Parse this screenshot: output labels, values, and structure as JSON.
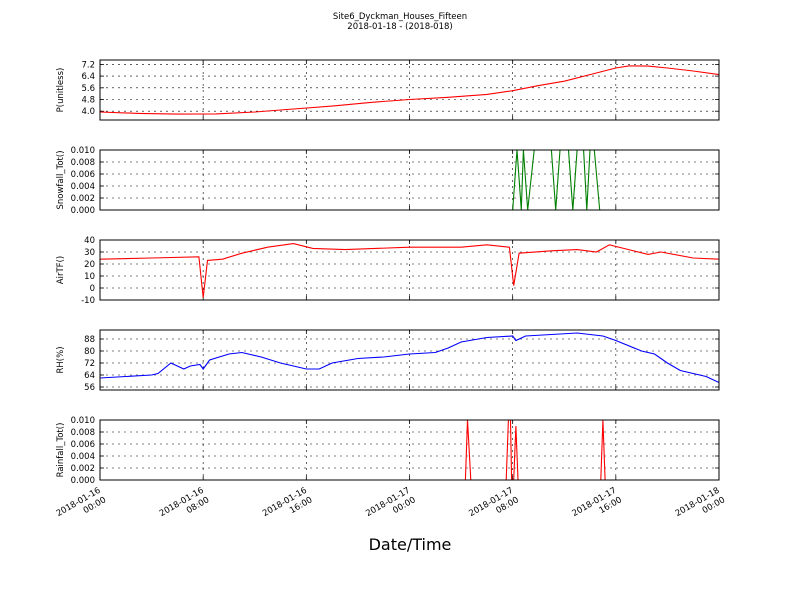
{
  "chart_data": {
    "type": "line",
    "title": "Site6_Dyckman_Houses_Fifteen",
    "subtitle": "2018-01-18 - (2018-018)",
    "xlabel": "Date/Time",
    "x_range": [
      "2018-01-16 00:00",
      "2018-01-18 00:00"
    ],
    "x_ticks": [
      {
        "x": "2018-01-16 00:00",
        "line1": "2018-01-16",
        "line2": "00:00"
      },
      {
        "x": "2018-01-16 08:00",
        "line1": "2018-01-16",
        "line2": "08:00"
      },
      {
        "x": "2018-01-16 16:00",
        "line1": "2018-01-16",
        "line2": "16:00"
      },
      {
        "x": "2018-01-17 00:00",
        "line1": "2018-01-17",
        "line2": "00:00"
      },
      {
        "x": "2018-01-17 08:00",
        "line1": "2018-01-17",
        "line2": "08:00"
      },
      {
        "x": "2018-01-17 16:00",
        "line1": "2018-01-17",
        "line2": "16:00"
      },
      {
        "x": "2018-01-18 00:00",
        "line1": "2018-01-18",
        "line2": "00:00"
      }
    ],
    "grid": true,
    "panels": [
      {
        "ylabel": "P(unitless)",
        "ylim": [
          3.4,
          7.5
        ],
        "yticks": [
          4.0,
          4.8,
          5.6,
          6.4,
          7.2
        ],
        "tick_decimals": 1,
        "color": "#ff0000",
        "points": [
          [
            "2018-01-16 00:00",
            3.95
          ],
          [
            "2018-01-16 03:00",
            3.85
          ],
          [
            "2018-01-16 06:00",
            3.8
          ],
          [
            "2018-01-16 09:00",
            3.82
          ],
          [
            "2018-01-16 12:00",
            3.95
          ],
          [
            "2018-01-16 15:00",
            4.15
          ],
          [
            "2018-01-16 18:00",
            4.35
          ],
          [
            "2018-01-16 21:00",
            4.6
          ],
          [
            "2018-01-17 00:00",
            4.8
          ],
          [
            "2018-01-17 03:00",
            4.95
          ],
          [
            "2018-01-17 06:00",
            5.15
          ],
          [
            "2018-01-17 08:00",
            5.4
          ],
          [
            "2018-01-17 10:00",
            5.75
          ],
          [
            "2018-01-17 12:00",
            6.05
          ],
          [
            "2018-01-17 14:00",
            6.5
          ],
          [
            "2018-01-17 16:00",
            6.95
          ],
          [
            "2018-01-17 17:00",
            7.1
          ],
          [
            "2018-01-17 18:30",
            7.08
          ],
          [
            "2018-01-17 20:00",
            6.95
          ],
          [
            "2018-01-17 22:00",
            6.75
          ],
          [
            "2018-01-18 00:00",
            6.5
          ]
        ]
      },
      {
        "ylabel": "Snowfall_Tot()",
        "ylim": [
          0.0,
          0.01
        ],
        "yticks": [
          0.0,
          0.002,
          0.004,
          0.006,
          0.008,
          0.01
        ],
        "tick_decimals": 3,
        "color": "#007f00",
        "points": [
          [
            "2018-01-16 00:00",
            0
          ],
          [
            "2018-01-17 08:00",
            0
          ],
          [
            "2018-01-17 08:20",
            0.01
          ],
          [
            "2018-01-17 08:40",
            0
          ],
          [
            "2018-01-17 08:50",
            0.01
          ],
          [
            "2018-01-17 09:10",
            0
          ],
          [
            "2018-01-17 09:40",
            0.01
          ],
          [
            "2018-01-17 11:00",
            0.01
          ],
          [
            "2018-01-17 11:20",
            0
          ],
          [
            "2018-01-17 11:40",
            0.01
          ],
          [
            "2018-01-17 12:20",
            0.01
          ],
          [
            "2018-01-17 12:40",
            0
          ],
          [
            "2018-01-17 13:00",
            0.01
          ],
          [
            "2018-01-17 13:30",
            0.01
          ],
          [
            "2018-01-17 13:45",
            0
          ],
          [
            "2018-01-17 14:00",
            0.01
          ],
          [
            "2018-01-17 14:20",
            0.01
          ],
          [
            "2018-01-17 14:45",
            0
          ],
          [
            "2018-01-18 00:00",
            0
          ]
        ]
      },
      {
        "ylabel": "AirTF()",
        "ylim": [
          -10,
          40
        ],
        "yticks": [
          -10,
          0,
          10,
          20,
          30,
          40
        ],
        "tick_decimals": 0,
        "color": "#ff0000",
        "points": [
          [
            "2018-01-16 00:00",
            24
          ],
          [
            "2018-01-16 04:00",
            25
          ],
          [
            "2018-01-16 07:40",
            26
          ],
          [
            "2018-01-16 08:00",
            -8
          ],
          [
            "2018-01-16 08:20",
            23
          ],
          [
            "2018-01-16 09:30",
            24
          ],
          [
            "2018-01-16 11:00",
            29
          ],
          [
            "2018-01-16 13:00",
            34
          ],
          [
            "2018-01-16 15:00",
            37
          ],
          [
            "2018-01-16 16:30",
            33
          ],
          [
            "2018-01-16 19:00",
            32
          ],
          [
            "2018-01-17 00:00",
            34
          ],
          [
            "2018-01-17 04:00",
            34
          ],
          [
            "2018-01-17 06:00",
            36
          ],
          [
            "2018-01-17 07:45",
            34
          ],
          [
            "2018-01-17 08:05",
            2
          ],
          [
            "2018-01-17 08:30",
            29
          ],
          [
            "2018-01-17 11:00",
            31
          ],
          [
            "2018-01-17 13:00",
            32
          ],
          [
            "2018-01-17 14:30",
            30
          ],
          [
            "2018-01-17 15:30",
            36
          ],
          [
            "2018-01-17 17:00",
            32
          ],
          [
            "2018-01-17 18:30",
            28
          ],
          [
            "2018-01-17 19:30",
            30
          ],
          [
            "2018-01-17 22:00",
            25
          ],
          [
            "2018-01-18 00:00",
            24
          ]
        ]
      },
      {
        "ylabel": "RH(%)",
        "ylim": [
          54,
          94
        ],
        "yticks": [
          56,
          64,
          72,
          80,
          88
        ],
        "tick_decimals": 0,
        "color": "#0000ff",
        "points": [
          [
            "2018-01-16 00:00",
            62
          ],
          [
            "2018-01-16 02:00",
            63
          ],
          [
            "2018-01-16 04:00",
            64
          ],
          [
            "2018-01-16 04:30",
            65
          ],
          [
            "2018-01-16 05:30",
            72
          ],
          [
            "2018-01-16 06:30",
            68
          ],
          [
            "2018-01-16 07:00",
            70
          ],
          [
            "2018-01-16 07:45",
            71
          ],
          [
            "2018-01-16 08:00",
            68
          ],
          [
            "2018-01-16 08:30",
            74
          ],
          [
            "2018-01-16 10:00",
            78
          ],
          [
            "2018-01-16 11:00",
            79
          ],
          [
            "2018-01-16 12:30",
            76
          ],
          [
            "2018-01-16 14:00",
            72
          ],
          [
            "2018-01-16 15:00",
            70
          ],
          [
            "2018-01-16 16:00",
            68
          ],
          [
            "2018-01-16 17:00",
            68
          ],
          [
            "2018-01-16 18:00",
            72
          ],
          [
            "2018-01-16 20:00",
            75
          ],
          [
            "2018-01-16 22:00",
            76
          ],
          [
            "2018-01-17 00:00",
            78
          ],
          [
            "2018-01-17 02:00",
            79
          ],
          [
            "2018-01-17 03:00",
            82
          ],
          [
            "2018-01-17 04:00",
            86
          ],
          [
            "2018-01-17 06:00",
            89
          ],
          [
            "2018-01-17 08:00",
            90
          ],
          [
            "2018-01-17 08:15",
            87
          ],
          [
            "2018-01-17 09:00",
            90
          ],
          [
            "2018-01-17 11:00",
            91
          ],
          [
            "2018-01-17 13:00",
            92
          ],
          [
            "2018-01-17 15:00",
            90
          ],
          [
            "2018-01-17 16:00",
            87
          ],
          [
            "2018-01-17 18:00",
            80
          ],
          [
            "2018-01-17 19:00",
            78
          ],
          [
            "2018-01-17 20:00",
            72
          ],
          [
            "2018-01-17 21:00",
            67
          ],
          [
            "2018-01-17 23:00",
            63
          ],
          [
            "2018-01-18 00:00",
            59
          ]
        ]
      },
      {
        "ylabel": "Rainfall_Tot()",
        "ylim": [
          0.0,
          0.01
        ],
        "yticks": [
          0.0,
          0.002,
          0.004,
          0.006,
          0.008,
          0.01
        ],
        "tick_decimals": 3,
        "color": "#ff0000",
        "points": [
          [
            "2018-01-16 00:00",
            0
          ],
          [
            "2018-01-17 04:20",
            0
          ],
          [
            "2018-01-17 04:30",
            0.01
          ],
          [
            "2018-01-17 04:45",
            0
          ],
          [
            "2018-01-17 07:30",
            0
          ],
          [
            "2018-01-17 07:40",
            0.01
          ],
          [
            "2018-01-17 07:50",
            0.01
          ],
          [
            "2018-01-17 07:55",
            0
          ],
          [
            "2018-01-17 08:05",
            0
          ],
          [
            "2018-01-17 08:15",
            0.009
          ],
          [
            "2018-01-17 08:25",
            0
          ],
          [
            "2018-01-17 14:50",
            0
          ],
          [
            "2018-01-17 15:00",
            0.01
          ],
          [
            "2018-01-17 15:10",
            0
          ],
          [
            "2018-01-18 00:00",
            0
          ]
        ]
      }
    ]
  }
}
